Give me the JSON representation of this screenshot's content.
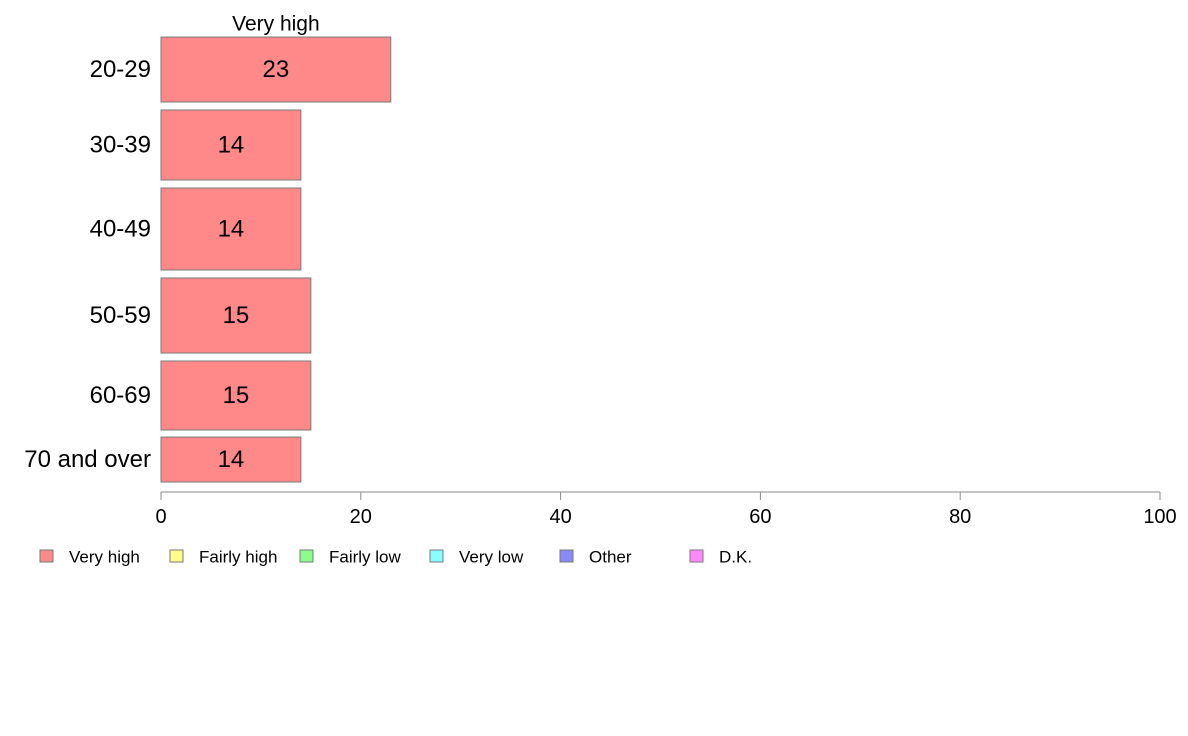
{
  "chart_data": {
    "type": "bar",
    "orientation": "horizontal",
    "stacked": true,
    "categories": [
      "20-29",
      "30-39",
      "40-49",
      "50-59",
      "60-69",
      "70 and over"
    ],
    "series": [
      {
        "name": "Very high",
        "color": "#ff8888",
        "values": [
          23,
          14,
          14,
          15,
          15,
          14
        ]
      }
    ],
    "xlim": [
      0,
      100
    ],
    "x_ticks": [
      0,
      20,
      40,
      60,
      80,
      100
    ],
    "grid": false,
    "legend_placement": "bottom",
    "legend": [
      {
        "name": "Very high",
        "color": "#ff8888"
      },
      {
        "name": "Fairly high",
        "color": "#ffff88"
      },
      {
        "name": "Fairly low",
        "color": "#88ff88"
      },
      {
        "name": "Very low",
        "color": "#88ffff"
      },
      {
        "name": "Other",
        "color": "#8888ff"
      },
      {
        "name": "D.K.",
        "color": "#ff88ff"
      }
    ]
  }
}
